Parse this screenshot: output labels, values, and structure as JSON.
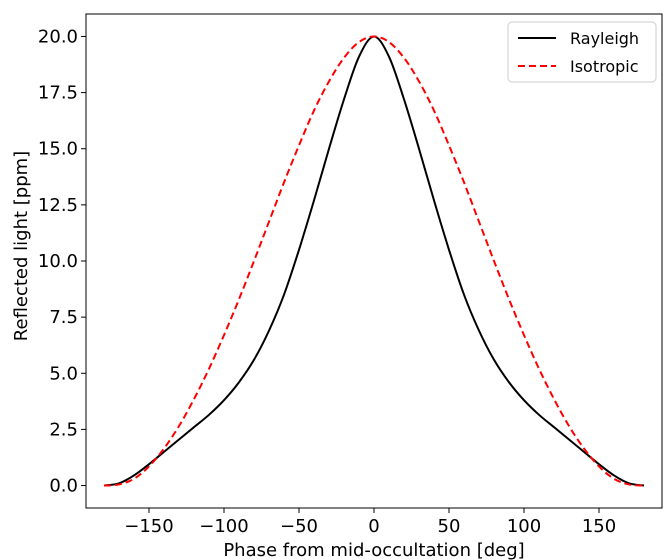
{
  "chart_data": {
    "type": "line",
    "title": "",
    "xlabel": "Phase from mid-occultation [deg]",
    "ylabel": "Reflected light [ppm]",
    "xlim": [
      -192,
      192
    ],
    "ylim": [
      -1.0,
      21.0
    ],
    "xticks": [
      -150,
      -100,
      -50,
      0,
      50,
      100,
      150
    ],
    "xtick_labels": [
      "−150",
      "−100",
      "−50",
      "0",
      "50",
      "100",
      "150"
    ],
    "yticks": [
      0.0,
      2.5,
      5.0,
      7.5,
      10.0,
      12.5,
      15.0,
      17.5,
      20.0
    ],
    "ytick_labels": [
      "0.0",
      "2.5",
      "5.0",
      "7.5",
      "10.0",
      "12.5",
      "15.0",
      "17.5",
      "20.0"
    ],
    "grid": false,
    "legend_position": "top-right",
    "series": [
      {
        "name": "Rayleigh",
        "color": "#000000",
        "style": "solid",
        "x": [
          -180,
          -170,
          -160,
          -150,
          -140,
          -130,
          -120,
          -110,
          -100,
          -90,
          -80,
          -70,
          -60,
          -50,
          -40,
          -30,
          -20,
          -10,
          0,
          10,
          20,
          30,
          40,
          50,
          60,
          70,
          80,
          90,
          100,
          110,
          120,
          130,
          140,
          150,
          160,
          170,
          180
        ],
        "y": [
          0.0,
          0.1,
          0.45,
          0.95,
          1.5,
          2.05,
          2.6,
          3.15,
          3.8,
          4.6,
          5.6,
          6.9,
          8.5,
          10.5,
          12.7,
          15.0,
          17.2,
          19.1,
          20.0,
          19.1,
          17.2,
          15.0,
          12.7,
          10.5,
          8.5,
          6.9,
          5.6,
          4.6,
          3.8,
          3.15,
          2.6,
          2.05,
          1.5,
          0.95,
          0.45,
          0.1,
          0.0
        ]
      },
      {
        "name": "Isotropic",
        "color": "#ff0000",
        "style": "dashed",
        "x": [
          -180,
          -170,
          -160,
          -150,
          -140,
          -130,
          -120,
          -110,
          -100,
          -90,
          -80,
          -70,
          -60,
          -50,
          -40,
          -30,
          -20,
          -10,
          0,
          10,
          20,
          30,
          40,
          50,
          60,
          70,
          80,
          90,
          100,
          110,
          120,
          130,
          140,
          150,
          160,
          170,
          180
        ],
        "y": [
          0.0,
          0.05,
          0.3,
          0.85,
          1.65,
          2.65,
          3.85,
          5.2,
          6.7,
          8.3,
          10.0,
          11.75,
          13.5,
          15.15,
          16.7,
          18.0,
          19.05,
          19.75,
          20.0,
          19.75,
          19.05,
          18.0,
          16.7,
          15.15,
          13.5,
          11.75,
          10.0,
          8.3,
          6.7,
          5.2,
          3.85,
          2.65,
          1.65,
          0.85,
          0.3,
          0.05,
          0.0
        ]
      }
    ]
  }
}
